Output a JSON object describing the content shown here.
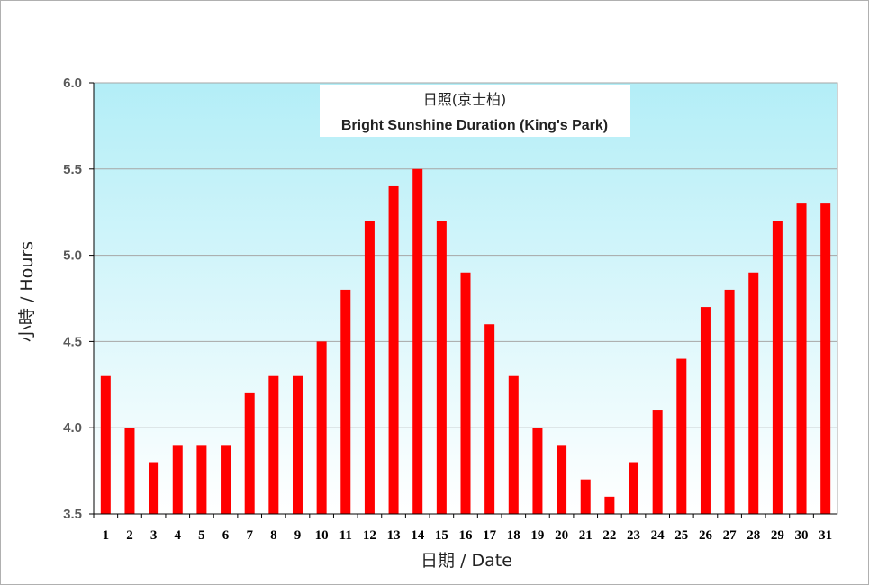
{
  "chart_data": {
    "type": "bar",
    "title": "日照(京士柏)",
    "subtitle": "Bright Sunshine Duration (King's Park)",
    "xlabel": "日期 / Date",
    "ylabel": "小時 / Hours",
    "ylim": [
      3.5,
      6.0
    ],
    "yticks": [
      "3.5",
      "4.0",
      "4.5",
      "5.0",
      "5.5",
      "6.0"
    ],
    "grid": true,
    "categories": [
      "1",
      "2",
      "3",
      "4",
      "5",
      "6",
      "7",
      "8",
      "9",
      "10",
      "11",
      "12",
      "13",
      "14",
      "15",
      "16",
      "17",
      "18",
      "19",
      "20",
      "21",
      "22",
      "23",
      "24",
      "25",
      "26",
      "27",
      "28",
      "29",
      "30",
      "31"
    ],
    "values": [
      4.3,
      4.0,
      3.8,
      3.9,
      3.9,
      3.9,
      4.2,
      4.3,
      4.3,
      4.5,
      4.8,
      5.2,
      5.4,
      5.5,
      5.2,
      4.9,
      4.6,
      4.3,
      4.0,
      3.9,
      3.7,
      3.6,
      3.8,
      4.1,
      4.4,
      4.7,
      4.8,
      4.9,
      5.2,
      5.3,
      5.3
    ],
    "colors": {
      "bar": "#ff0000",
      "plot_top": "#b3eef7",
      "plot_bottom": "#ffffff",
      "grid": "#a6a6a6"
    }
  }
}
